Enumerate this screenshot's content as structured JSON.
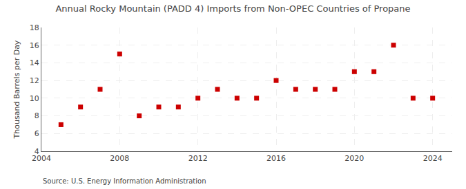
{
  "chart_data": {
    "type": "scatter",
    "title": "Annual Rocky Mountain (PADD 4) Imports from Non-OPEC Countries of Propane",
    "y_label": "Thousand Barrels per Day",
    "annotations": [
      "Source: U.S. Energy Information Administration"
    ],
    "x": [
      2005,
      2006,
      2007,
      2008,
      2009,
      2010,
      2011,
      2012,
      2013,
      2014,
      2015,
      2016,
      2017,
      2018,
      2019,
      2020,
      2021,
      2022,
      2023,
      2024
    ],
    "values": [
      7,
      9,
      11,
      15,
      8,
      9,
      9,
      10,
      11,
      10,
      10,
      12,
      11,
      11,
      11,
      13,
      13,
      16,
      10,
      10
    ],
    "color": "#cc0000",
    "marker": "square",
    "xlim": [
      2004,
      2025
    ],
    "xticks": [
      2004,
      2008,
      2012,
      2016,
      2020,
      2024
    ],
    "ylim": [
      4,
      18
    ],
    "yticks": [
      4,
      6,
      8,
      10,
      12,
      14,
      16,
      18
    ],
    "grid": true
  }
}
